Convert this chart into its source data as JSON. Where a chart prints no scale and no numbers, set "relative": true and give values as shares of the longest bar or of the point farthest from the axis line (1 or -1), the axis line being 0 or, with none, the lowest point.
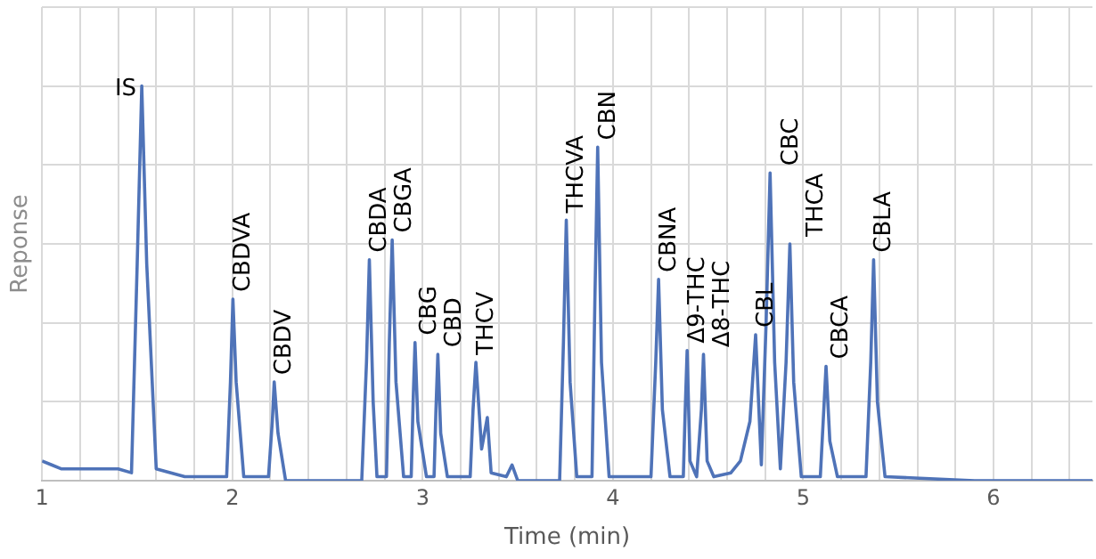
{
  "chart_data": {
    "type": "line",
    "relative": true,
    "xlabel": "Time (min)",
    "ylabel": "Reponse",
    "xlim": [
      1,
      6.52
    ],
    "xticks": [
      1,
      {
        "value": 1.2,
        "label": null
      },
      {
        "value": 1.4,
        "label": null
      },
      {
        "value": 1.6,
        "label": null
      },
      {
        "value": 1.8,
        "label": null
      },
      2,
      {
        "value": 2.2,
        "label": null
      },
      {
        "value": 2.4,
        "label": null
      },
      {
        "value": 2.6,
        "label": null
      },
      {
        "value": 2.8,
        "label": null
      },
      3,
      {
        "value": 3.2,
        "label": null
      },
      {
        "value": 3.4,
        "label": null
      },
      {
        "value": 3.6,
        "label": null
      },
      {
        "value": 3.8,
        "label": null
      },
      4,
      {
        "value": 4.2,
        "label": null
      },
      {
        "value": 4.4,
        "label": null
      },
      {
        "value": 4.6,
        "label": null
      },
      {
        "value": 4.8,
        "label": null
      },
      5,
      {
        "value": 5.2,
        "label": null
      },
      {
        "value": 5.4,
        "label": null
      },
      {
        "value": 5.6,
        "label": null
      },
      {
        "value": 5.8,
        "label": null
      },
      6,
      {
        "value": 6.2,
        "label": null
      },
      {
        "value": 6.4,
        "label": null
      }
    ],
    "grid": true,
    "legend": false,
    "marker": "none",
    "line_style": "solid",
    "tick_labels": "x",
    "x": [
      1.0,
      1.05,
      1.1,
      1.4,
      1.47,
      1.5,
      1.524,
      1.55,
      1.6,
      1.75,
      1.97,
      1.99,
      2.003,
      2.02,
      2.06,
      2.19,
      2.21,
      2.22,
      2.24,
      2.28,
      2.68,
      2.705,
      2.72,
      2.74,
      2.76,
      2.81,
      2.825,
      2.84,
      2.86,
      2.9,
      2.94,
      2.95,
      2.96,
      2.975,
      3.02,
      3.06,
      3.07,
      3.08,
      3.095,
      3.13,
      3.25,
      3.265,
      3.28,
      3.31,
      3.34,
      3.36,
      3.44,
      3.47,
      3.5,
      3.72,
      3.74,
      3.755,
      3.775,
      3.81,
      3.89,
      3.905,
      3.92,
      3.94,
      3.98,
      4.2,
      4.225,
      4.24,
      4.26,
      4.3,
      4.37,
      4.38,
      4.39,
      4.405,
      4.44,
      4.465,
      4.476,
      4.495,
      4.53,
      4.62,
      4.67,
      4.72,
      4.75,
      4.78,
      4.805,
      4.826,
      4.85,
      4.88,
      4.91,
      4.93,
      4.95,
      4.99,
      5.09,
      5.105,
      5.12,
      5.14,
      5.18,
      5.33,
      5.355,
      5.37,
      5.39,
      5.43,
      5.9,
      6.52
    ],
    "series": [
      {
        "color": "#4f73b8",
        "values": [
          0.05,
          0.04,
          0.03,
          0.03,
          0.02,
          0.55,
          1.0,
          0.55,
          0.03,
          0.01,
          0.01,
          0.25,
          0.46,
          0.25,
          0.01,
          0.01,
          0.15,
          0.25,
          0.12,
          0.0,
          0.0,
          0.3,
          0.56,
          0.2,
          0.01,
          0.01,
          0.35,
          0.61,
          0.25,
          0.01,
          0.01,
          0.2,
          0.35,
          0.15,
          0.01,
          0.01,
          0.18,
          0.32,
          0.12,
          0.01,
          0.01,
          0.18,
          0.3,
          0.08,
          0.16,
          0.02,
          0.01,
          0.04,
          0.0,
          0.0,
          0.35,
          0.66,
          0.25,
          0.01,
          0.01,
          0.45,
          0.845,
          0.3,
          0.01,
          0.01,
          0.3,
          0.51,
          0.18,
          0.01,
          0.01,
          0.18,
          0.33,
          0.05,
          0.01,
          0.18,
          0.32,
          0.05,
          0.01,
          0.02,
          0.05,
          0.15,
          0.37,
          0.04,
          0.4,
          0.78,
          0.3,
          0.03,
          0.3,
          0.6,
          0.25,
          0.01,
          0.01,
          0.15,
          0.29,
          0.1,
          0.01,
          0.01,
          0.3,
          0.56,
          0.2,
          0.01,
          0.0,
          0.0
        ]
      }
    ],
    "annotations": [
      {
        "text": "IS",
        "x": 1.524,
        "y": 1.0
      },
      {
        "text": "CBDVA",
        "x": 2.003,
        "y": 0.46
      },
      {
        "text": "CBDV",
        "x": 2.22,
        "y": 0.25
      },
      {
        "text": "CBDA",
        "x": 2.72,
        "y": 0.56
      },
      {
        "text": "CBGA",
        "x": 2.84,
        "y": 0.61
      },
      {
        "text": "CBG",
        "x": 2.96,
        "y": 0.35
      },
      {
        "text": "CBD",
        "x": 3.08,
        "y": 0.32
      },
      {
        "text": "THCV",
        "x": 3.28,
        "y": 0.3
      },
      {
        "text": "THCVA",
        "x": 3.755,
        "y": 0.66
      },
      {
        "text": "CBN",
        "x": 3.92,
        "y": 0.845
      },
      {
        "text": "CBNA",
        "x": 4.24,
        "y": 0.51
      },
      {
        "text": "Δ9-THC",
        "x": 4.39,
        "y": 0.33
      },
      {
        "text": "Δ8-THC",
        "x": 4.476,
        "y": 0.32
      },
      {
        "text": "CBL",
        "x": 4.75,
        "y": 0.37
      },
      {
        "text": "CBC",
        "x": 4.826,
        "y": 0.78
      },
      {
        "text": "THCA",
        "x": 4.93,
        "y": 0.6
      },
      {
        "text": "CBCA",
        "x": 5.12,
        "y": 0.29
      },
      {
        "text": "CBLA",
        "x": 5.37,
        "y": 0.56
      }
    ]
  }
}
